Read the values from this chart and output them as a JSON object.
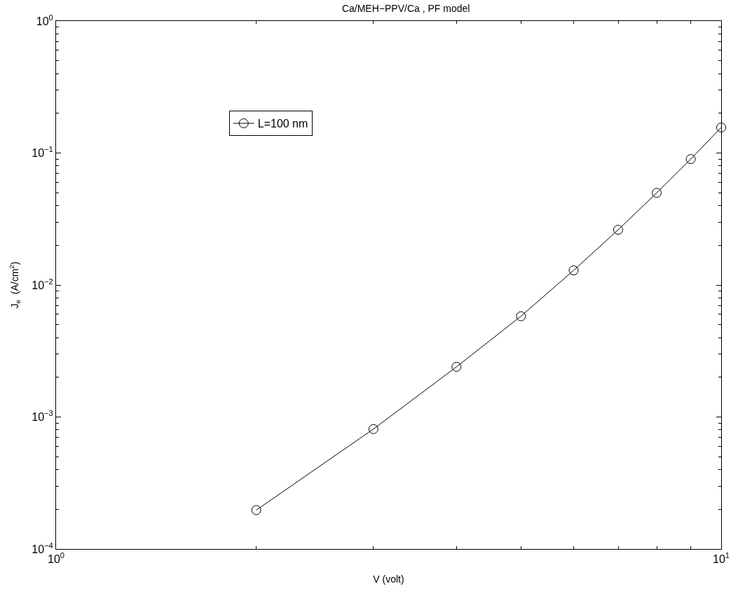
{
  "chart_data": {
    "type": "line",
    "title": "Ca/MEH−PPV/Ca , PF model",
    "xlabel": "V (volt)",
    "ylabel": "J$_{e}$  (A/cm$^{2}$)",
    "x": [
      2,
      3,
      4,
      5,
      6,
      7,
      8,
      9,
      10
    ],
    "series": [
      {
        "name": "L=100 nm",
        "color": "#000000",
        "values": [
          0.000197,
          0.00081,
          0.0024,
          0.0058,
          0.0129,
          0.0262,
          0.0499,
          0.09,
          0.156
        ]
      }
    ],
    "log": "xy",
    "xlim": [
      1,
      10
    ],
    "ylim": [
      0.0001,
      1
    ],
    "xticks": [
      {
        "value": 1,
        "label": "10$^{0}$"
      },
      {
        "value": 10,
        "label": "10$^{1}$"
      }
    ],
    "yticks": [
      {
        "value": 0.0001,
        "label": "10$^{−4}$"
      },
      {
        "value": 0.001,
        "label": "10$^{−3}$"
      },
      {
        "value": 0.01,
        "label": "10$^{−2}$"
      },
      {
        "value": 0.1,
        "label": "10$^{−1}$"
      },
      {
        "value": 1,
        "label": "10$^{0}$"
      }
    ],
    "marker": "circle",
    "line_style": "solid",
    "legend": "top left"
  }
}
